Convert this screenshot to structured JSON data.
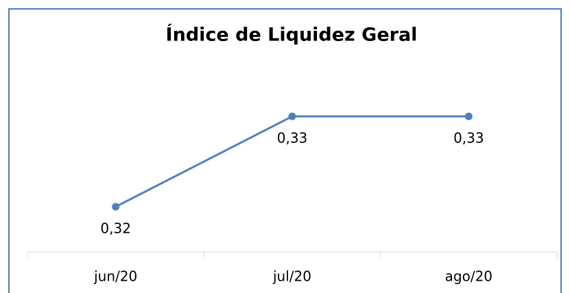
{
  "chart_data": {
    "type": "line",
    "title": "Índice de Liquidez Geral",
    "categories": [
      "jun/20",
      "jul/20",
      "ago/20"
    ],
    "series": [
      {
        "name": null,
        "color": "#4f81bd",
        "values": [
          0.32,
          0.33,
          0.33
        ],
        "value_labels": [
          "0,32",
          "0,33",
          "0,33"
        ]
      }
    ],
    "ylim": [
      0.315,
      0.335
    ]
  }
}
